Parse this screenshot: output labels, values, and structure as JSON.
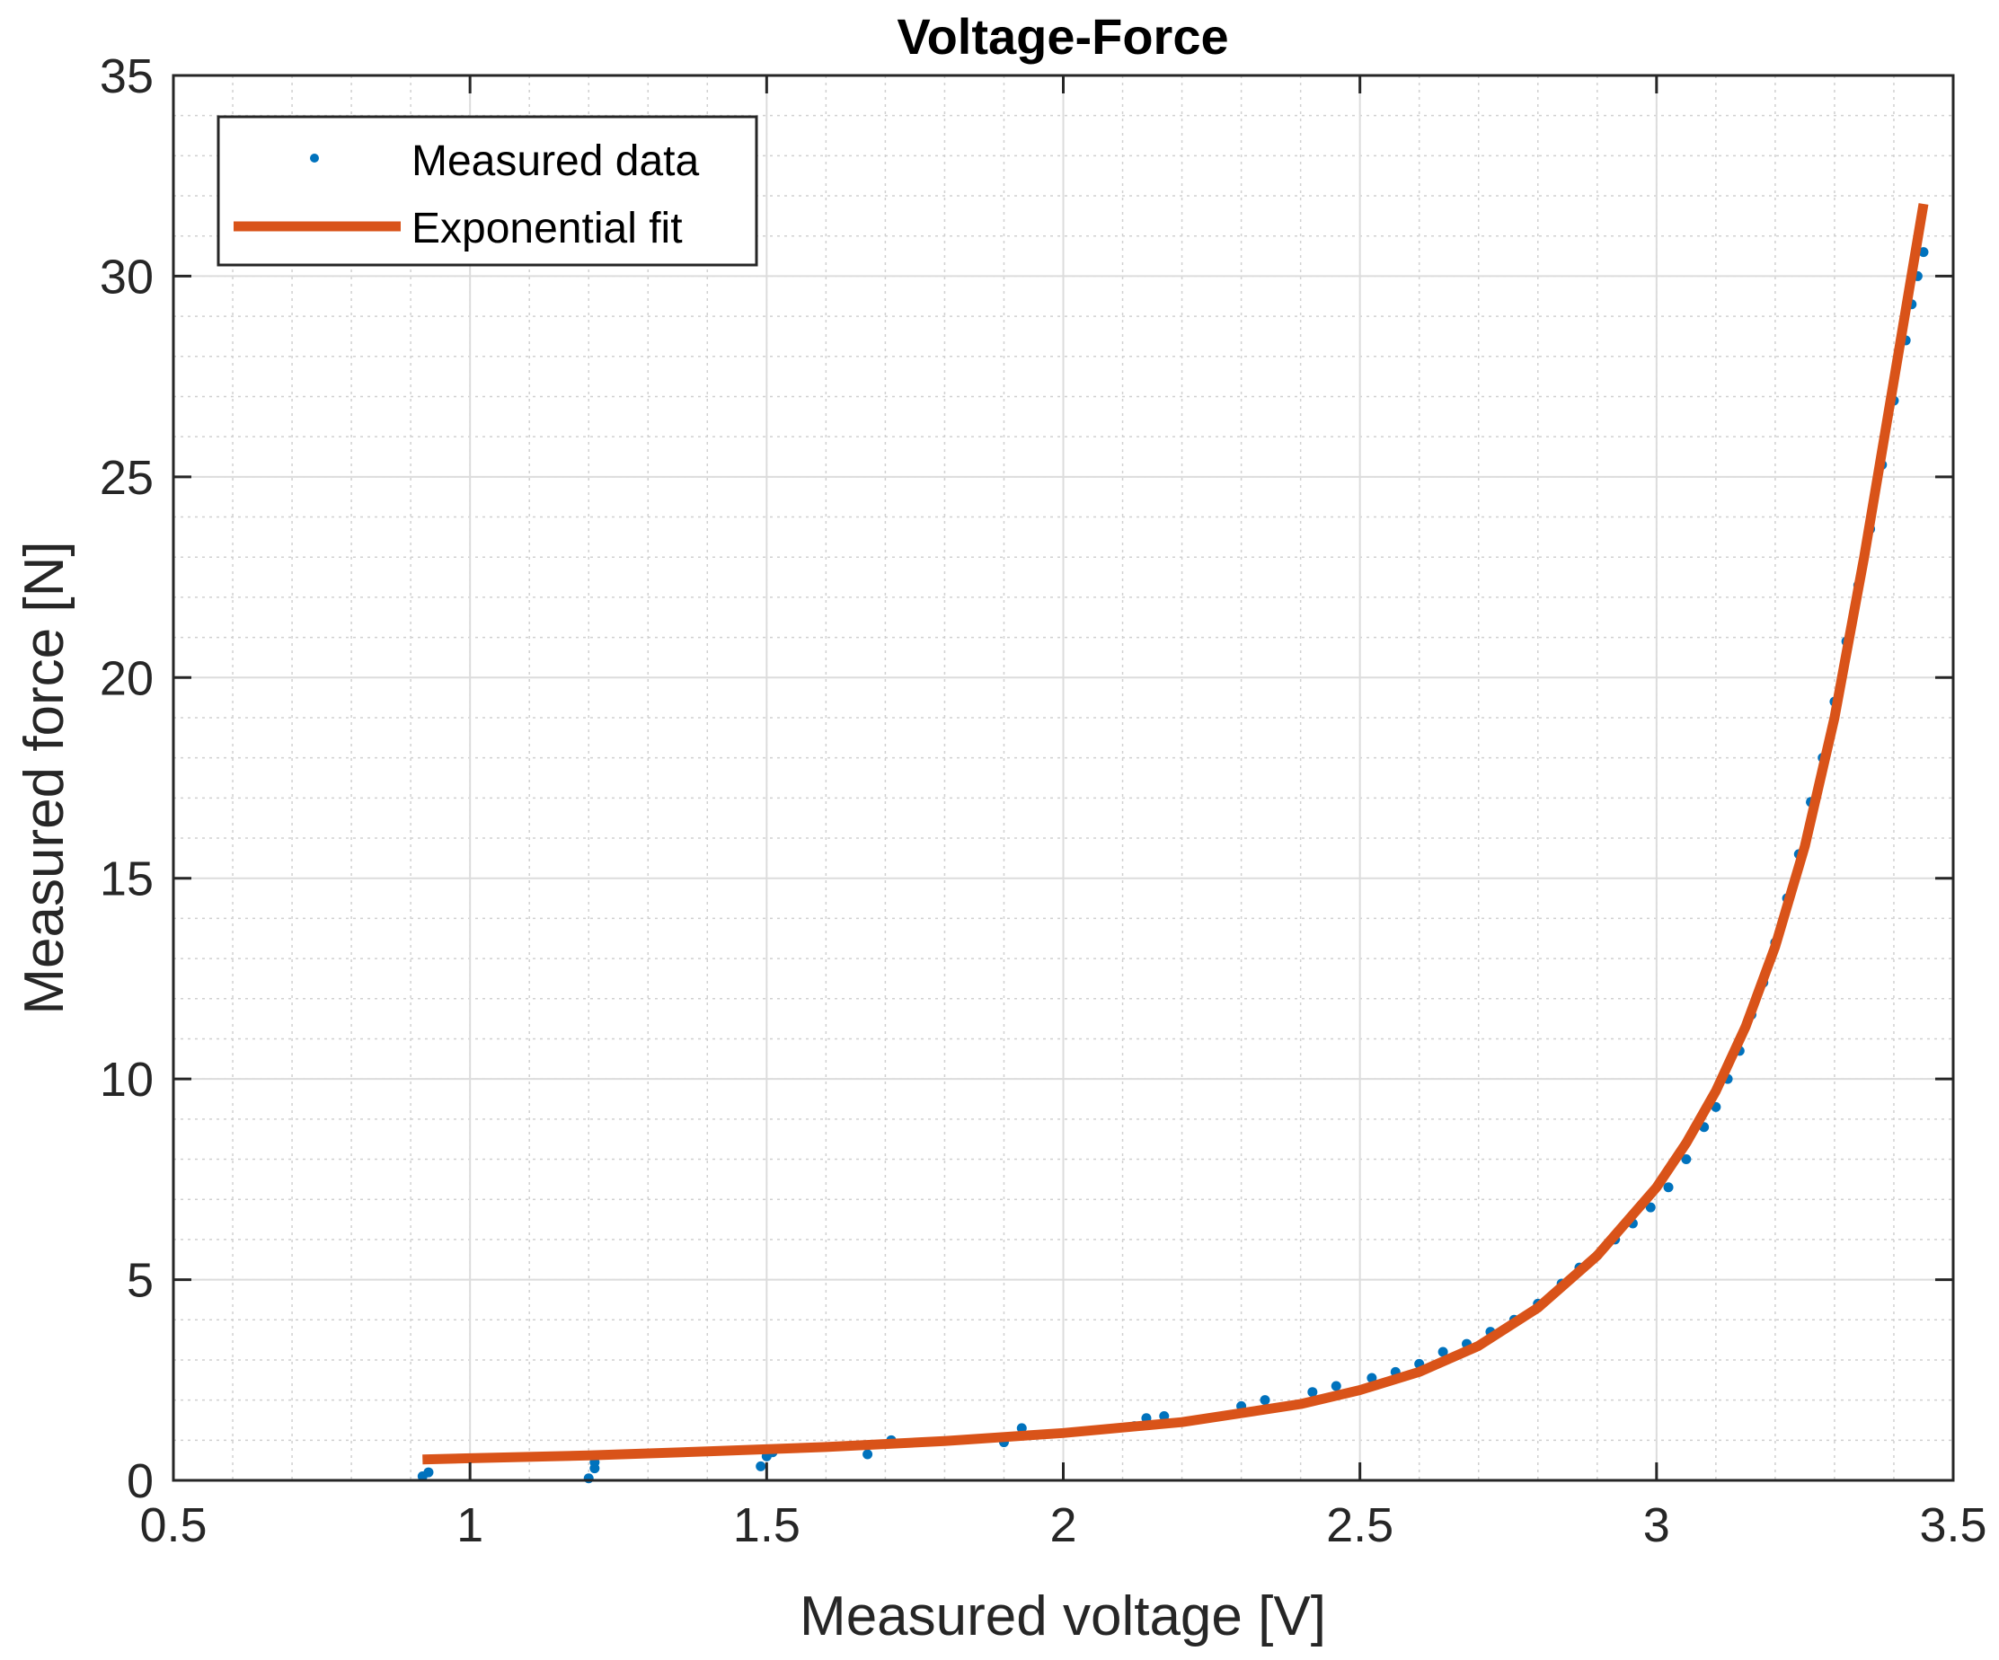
{
  "chart_data": {
    "type": "scatter",
    "title": "Voltage-Force",
    "xlabel": "Measured voltage [V]",
    "ylabel": "Measured force [N]",
    "xlim": [
      0.5,
      3.5
    ],
    "ylim": [
      0,
      35
    ],
    "x_ticks": [
      "0.5",
      "1",
      "1.5",
      "2",
      "2.5",
      "3",
      "3.5"
    ],
    "y_ticks": [
      "0",
      "5",
      "10",
      "15",
      "20",
      "25",
      "30",
      "35"
    ],
    "grid": true,
    "minor_grid": true,
    "legend_position": "top-left",
    "series": [
      {
        "name": "Measured data",
        "kind": "points",
        "color": "#0072BD",
        "points": [
          [
            0.92,
            0.1
          ],
          [
            0.93,
            0.2
          ],
          [
            1.2,
            0.05
          ],
          [
            1.21,
            0.3
          ],
          [
            1.21,
            0.45
          ],
          [
            1.49,
            0.35
          ],
          [
            1.5,
            0.6
          ],
          [
            1.51,
            0.7
          ],
          [
            1.67,
            0.65
          ],
          [
            1.71,
            1.0
          ],
          [
            1.9,
            0.95
          ],
          [
            1.93,
            1.3
          ],
          [
            2.12,
            1.35
          ],
          [
            2.14,
            1.55
          ],
          [
            2.17,
            1.6
          ],
          [
            2.3,
            1.85
          ],
          [
            2.34,
            2.0
          ],
          [
            2.42,
            2.2
          ],
          [
            2.46,
            2.35
          ],
          [
            2.52,
            2.55
          ],
          [
            2.56,
            2.7
          ],
          [
            2.6,
            2.9
          ],
          [
            2.64,
            3.2
          ],
          [
            2.68,
            3.4
          ],
          [
            2.72,
            3.7
          ],
          [
            2.76,
            4.0
          ],
          [
            2.8,
            4.4
          ],
          [
            2.84,
            4.9
          ],
          [
            2.87,
            5.3
          ],
          [
            2.9,
            5.6
          ],
          [
            2.93,
            6.0
          ],
          [
            2.96,
            6.4
          ],
          [
            2.99,
            6.8
          ],
          [
            3.02,
            7.3
          ],
          [
            3.05,
            8.0
          ],
          [
            3.08,
            8.8
          ],
          [
            3.1,
            9.3
          ],
          [
            3.12,
            10.0
          ],
          [
            3.14,
            10.7
          ],
          [
            3.16,
            11.6
          ],
          [
            3.18,
            12.4
          ],
          [
            3.2,
            13.4
          ],
          [
            3.22,
            14.5
          ],
          [
            3.24,
            15.6
          ],
          [
            3.26,
            16.9
          ],
          [
            3.28,
            18.0
          ],
          [
            3.3,
            19.4
          ],
          [
            3.32,
            20.9
          ],
          [
            3.34,
            22.3
          ],
          [
            3.36,
            23.7
          ],
          [
            3.38,
            25.3
          ],
          [
            3.4,
            26.9
          ],
          [
            3.42,
            28.4
          ],
          [
            3.43,
            29.3
          ],
          [
            3.44,
            30.0
          ],
          [
            3.45,
            30.6
          ]
        ]
      },
      {
        "name": "Exponential fit",
        "kind": "line",
        "color": "#D95319",
        "points": [
          [
            0.92,
            0.52
          ],
          [
            1.0,
            0.55
          ],
          [
            1.2,
            0.62
          ],
          [
            1.4,
            0.72
          ],
          [
            1.6,
            0.83
          ],
          [
            1.8,
            0.98
          ],
          [
            2.0,
            1.18
          ],
          [
            2.2,
            1.45
          ],
          [
            2.4,
            1.9
          ],
          [
            2.5,
            2.25
          ],
          [
            2.6,
            2.7
          ],
          [
            2.7,
            3.35
          ],
          [
            2.8,
            4.3
          ],
          [
            2.9,
            5.6
          ],
          [
            3.0,
            7.3
          ],
          [
            3.05,
            8.4
          ],
          [
            3.1,
            9.7
          ],
          [
            3.15,
            11.3
          ],
          [
            3.2,
            13.3
          ],
          [
            3.25,
            15.8
          ],
          [
            3.3,
            19.0
          ],
          [
            3.35,
            23.0
          ],
          [
            3.4,
            27.4
          ],
          [
            3.45,
            31.8
          ]
        ]
      }
    ]
  }
}
